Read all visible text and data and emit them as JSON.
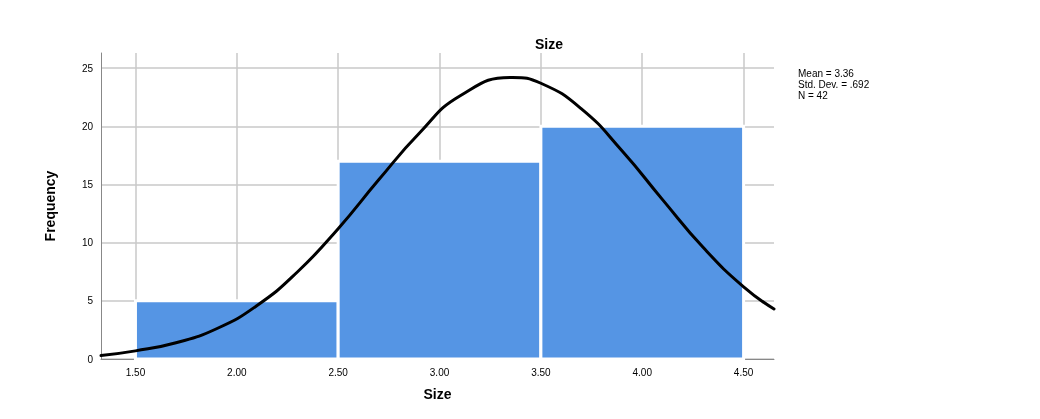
{
  "chart_data": {
    "type": "histogram",
    "title": "Size",
    "xlabel": "Size",
    "ylabel": "Frequency",
    "bins": [
      1.5,
      2.5,
      3.5,
      4.5
    ],
    "values": [
      5,
      17,
      20
    ],
    "color": "#5595e4",
    "series": [
      {
        "type": "line",
        "color": "#000000",
        "x": [
          1.33,
          1.5,
          1.7,
          1.9,
          2.1,
          2.3,
          2.5,
          2.7,
          2.9,
          3.1,
          3.36,
          3.5,
          3.7,
          3.9,
          4.1,
          4.3,
          4.5,
          4.65
        ],
        "values": [
          0.3,
          0.7,
          1.4,
          2.6,
          4.6,
          7.5,
          11.2,
          15.4,
          19.4,
          22.6,
          24.2,
          23.7,
          21.5,
          17.9,
          13.7,
          9.6,
          6.2,
          4.3
        ]
      }
    ],
    "xlim": [
      1.33,
      4.65
    ],
    "xticks": [
      {
        "value": 1.5,
        "label": "1.50"
      },
      {
        "value": 2,
        "label": "2.00"
      },
      {
        "value": 2.5,
        "label": "2.50"
      },
      {
        "value": 3,
        "label": "3.00"
      },
      {
        "value": 3.5,
        "label": "3.50"
      },
      {
        "value": 4,
        "label": "4.00"
      },
      {
        "value": 4.5,
        "label": "4.50"
      }
    ],
    "ylim": [
      0,
      26.3
    ],
    "yticks": [
      0,
      5,
      10,
      15,
      20,
      25
    ],
    "annotations": [
      "Mean = 3.36",
      "Std. Dev. = .692",
      "N = 42"
    ],
    "grid": true,
    "marker": "none",
    "line_style": "solid"
  }
}
